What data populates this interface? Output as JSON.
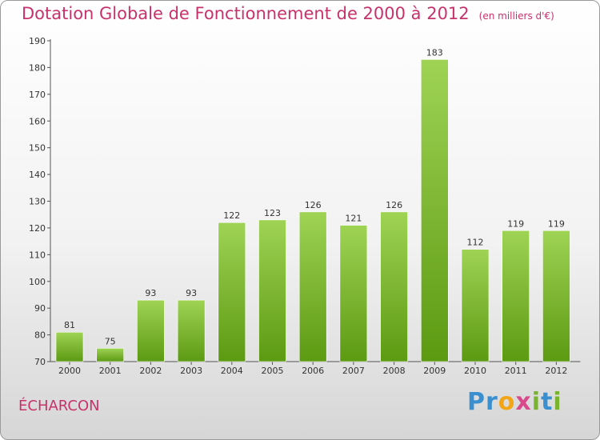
{
  "title": "Dotation Globale de Fonctionnement de 2000 à 2012",
  "unit_note": "(en milliers d'€)",
  "commune": "ÉCHARCON",
  "logo": {
    "p": "P",
    "r": "r",
    "o": "o",
    "x": "x",
    "i": "i",
    "t": "t",
    "i2": "i"
  },
  "colors": {
    "bar_top": "#9fd354",
    "bar_bottom": "#5c9a12",
    "title": "#c8326b"
  },
  "chart_data": {
    "type": "bar",
    "title": "Dotation Globale de Fonctionnement de 2000 à 2012",
    "subtitle": "(en milliers d'€)",
    "xlabel": "",
    "ylabel": "",
    "categories": [
      "2000",
      "2001",
      "2002",
      "2003",
      "2004",
      "2005",
      "2006",
      "2007",
      "2008",
      "2009",
      "2010",
      "2011",
      "2012"
    ],
    "values": [
      81,
      75,
      93,
      93,
      122,
      123,
      126,
      121,
      126,
      183,
      112,
      119,
      119
    ],
    "ylim": [
      70,
      190
    ],
    "yticks": [
      70,
      80,
      90,
      100,
      110,
      120,
      130,
      140,
      150,
      160,
      170,
      180,
      190
    ],
    "grid": false,
    "legend": "none"
  }
}
